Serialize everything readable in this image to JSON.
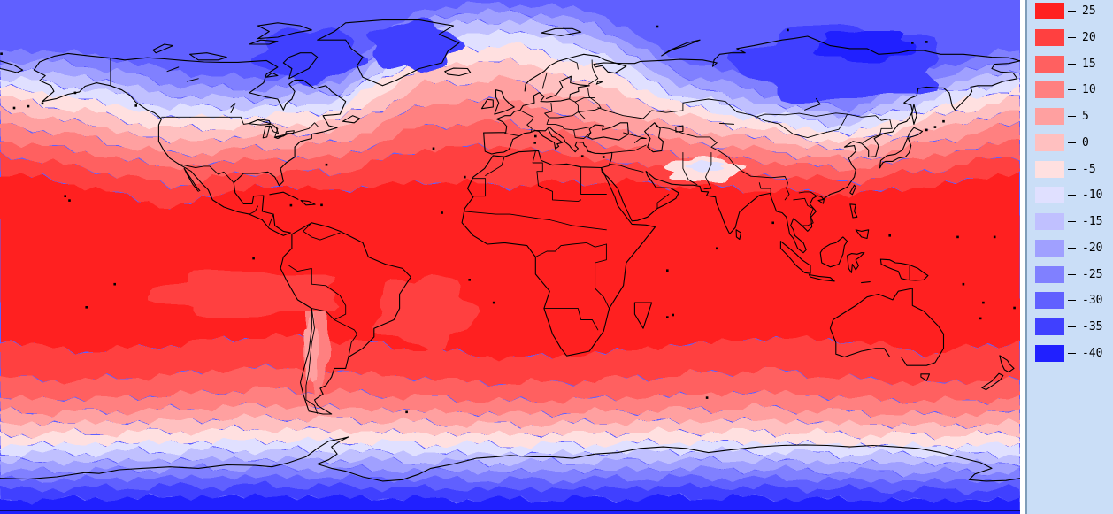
{
  "legend": {
    "background": "#cadef7",
    "border_color": "#7f9db9",
    "entries": [
      {
        "label": "25",
        "color": "#ff2020"
      },
      {
        "label": "20",
        "color": "#ff4040"
      },
      {
        "label": "15",
        "color": "#ff6060"
      },
      {
        "label": "10",
        "color": "#ff8080"
      },
      {
        "label": "5",
        "color": "#ffa0a0"
      },
      {
        "label": "0",
        "color": "#ffc0c0"
      },
      {
        "label": "-5",
        "color": "#ffe0e0"
      },
      {
        "label": "-10",
        "color": "#e0e0ff"
      },
      {
        "label": "-15",
        "color": "#c0c0ff"
      },
      {
        "label": "-20",
        "color": "#a0a0ff"
      },
      {
        "label": "-25",
        "color": "#8080ff"
      },
      {
        "label": "-30",
        "color": "#6060ff"
      },
      {
        "label": "-35",
        "color": "#4040ff"
      },
      {
        "label": "-40",
        "color": "#2020ff"
      }
    ]
  },
  "chart_data": {
    "type": "heatmap",
    "subtype": "filled-contour world temperature map",
    "projection": "equirectangular",
    "lon_range": [
      -180,
      180
    ],
    "lat_range": [
      -90,
      90
    ],
    "contour_interval": 5,
    "levels": [
      25,
      20,
      15,
      10,
      5,
      0,
      -5,
      -10,
      -15,
      -20,
      -25,
      -30,
      -35,
      -40
    ],
    "colors": [
      "#ff2020",
      "#ff4040",
      "#ff6060",
      "#ff8080",
      "#ffa0a0",
      "#ffc0c0",
      "#ffe0e0",
      "#e0e0ff",
      "#c0c0ff",
      "#a0a0ff",
      "#8080ff",
      "#6060ff",
      "#4040ff",
      "#2020ff"
    ],
    "legend_position": "right",
    "description": "Warm red bands across the tropics (>25 at the equator), grading through pale pink near 0 and lavender to deep blue below -40 at both poles; cold lobes dip south over northeast Canada, Greenland and Siberia; warm tongue extends northeast across the North Atlantic toward Scandinavia; country borders drawn in black."
  }
}
